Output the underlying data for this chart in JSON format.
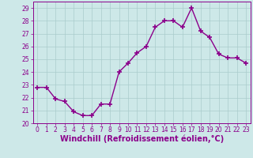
{
  "x": [
    0,
    1,
    2,
    3,
    4,
    5,
    6,
    7,
    8,
    9,
    10,
    11,
    12,
    13,
    14,
    15,
    16,
    17,
    18,
    19,
    20,
    21,
    22,
    23
  ],
  "y": [
    22.8,
    22.8,
    21.9,
    21.7,
    20.9,
    20.6,
    20.6,
    21.5,
    21.5,
    24.0,
    24.7,
    25.5,
    26.0,
    27.5,
    28.0,
    28.0,
    27.5,
    29.0,
    27.2,
    26.7,
    25.4,
    25.1,
    25.1,
    24.7
  ],
  "line_color": "#8b008b",
  "marker": "+",
  "marker_size": 4,
  "marker_linewidth": 1.2,
  "bg_color": "#cde8e8",
  "grid_color": "#aacccc",
  "xlabel": "Windchill (Refroidissement éolien,°C)",
  "ylim": [
    20,
    29.5
  ],
  "xlim": [
    -0.5,
    23.5
  ],
  "yticks": [
    20,
    21,
    22,
    23,
    24,
    25,
    26,
    27,
    28,
    29
  ],
  "xticks": [
    0,
    1,
    2,
    3,
    4,
    5,
    6,
    7,
    8,
    9,
    10,
    11,
    12,
    13,
    14,
    15,
    16,
    17,
    18,
    19,
    20,
    21,
    22,
    23
  ],
  "tick_color": "#8b008b",
  "tick_fontsize": 5.5,
  "xlabel_fontsize": 7.0,
  "label_color": "#8b008b",
  "linewidth": 1.0
}
